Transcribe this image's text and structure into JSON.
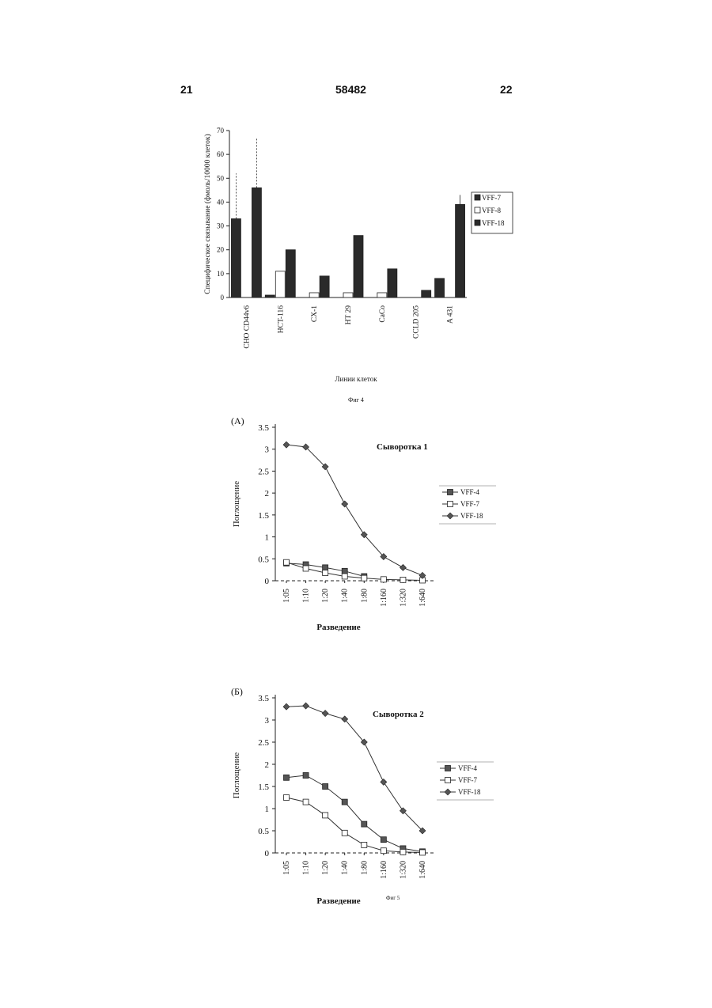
{
  "header": {
    "left": "21",
    "center": "58482",
    "right": "22"
  },
  "fig4": {
    "caption": "Фиг 4",
    "chart_data": {
      "type": "bar",
      "ylabel": "Специфическое связывание (фмоль/10000 клеток)",
      "xlabel": "Линии клеток",
      "yticks": [
        "0",
        "10",
        "20",
        "30",
        "40",
        "50",
        "60",
        "70"
      ],
      "ylim": [
        0,
        70
      ],
      "categories": [
        "CHO CD44v6",
        "HCT-116",
        "CX-1",
        "HT 29",
        "CaCo",
        "CCLD 205",
        "A 431"
      ],
      "series": [
        {
          "name": "VFF-7",
          "values": [
            33,
            1,
            0,
            0,
            0,
            0,
            8
          ],
          "color": "#2a2a2a",
          "fill": "solid"
        },
        {
          "name": "VFF-8",
          "values": [
            0,
            11,
            2,
            2,
            2,
            0,
            0
          ],
          "color": "#ffffff",
          "fill": "open"
        },
        {
          "name": "VFF-18",
          "values": [
            46,
            20,
            9,
            26,
            12,
            3,
            39
          ],
          "color": "#2a2a2a",
          "fill": "solid"
        }
      ],
      "legend": "right"
    }
  },
  "fig5a": {
    "panel": "(A)",
    "chart_data": {
      "type": "line",
      "title": "Сыворотка 1",
      "ylabel": "Поглощение",
      "xlabel": "Разведение",
      "categories": [
        "1:05",
        "1:10",
        "1:20",
        "1:40",
        "1:80",
        "1:160",
        "1:320",
        "1:640"
      ],
      "yticks": [
        "0",
        "0.5",
        "1",
        "1.5",
        "2",
        "2.5",
        "3",
        "3.5"
      ],
      "ylim": [
        0,
        3.5
      ],
      "series": [
        {
          "name": "VFF-4",
          "marker": "filled-square",
          "values": [
            0.4,
            0.37,
            0.3,
            0.22,
            0.1,
            null,
            null,
            null
          ]
        },
        {
          "name": "VFF-7",
          "marker": "open-square",
          "values": [
            0.42,
            0.28,
            0.18,
            0.1,
            0.06,
            0.03,
            0.02,
            0.01
          ]
        },
        {
          "name": "VFF-18",
          "marker": "diamond",
          "values": [
            3.1,
            3.05,
            2.6,
            1.75,
            1.05,
            0.55,
            0.3,
            0.12
          ]
        }
      ],
      "legend": "right"
    }
  },
  "fig5b": {
    "panel": "(Б)",
    "caption": "Фиг 5",
    "chart_data": {
      "type": "line",
      "title": "Сыворотка 2",
      "ylabel": "Поглощение",
      "xlabel": "Разведение",
      "categories": [
        "1:05",
        "1:10",
        "1:20",
        "1:40",
        "1:80",
        "1:160",
        "1:320",
        "1:640"
      ],
      "yticks": [
        "0",
        "0.5",
        "1",
        "1.5",
        "2",
        "2.5",
        "3",
        "3.5"
      ],
      "ylim": [
        0,
        3.5
      ],
      "series": [
        {
          "name": "VFF-4",
          "marker": "filled-square",
          "values": [
            1.7,
            1.75,
            1.5,
            1.15,
            0.65,
            0.3,
            0.1,
            0.03
          ]
        },
        {
          "name": "VFF-7",
          "marker": "open-square",
          "values": [
            1.25,
            1.15,
            0.85,
            0.45,
            0.18,
            0.05,
            0.02,
            0.01
          ]
        },
        {
          "name": "VFF-18",
          "marker": "diamond",
          "values": [
            3.3,
            3.32,
            3.15,
            3.02,
            2.5,
            1.6,
            0.95,
            0.5
          ]
        }
      ],
      "legend": "right"
    }
  }
}
